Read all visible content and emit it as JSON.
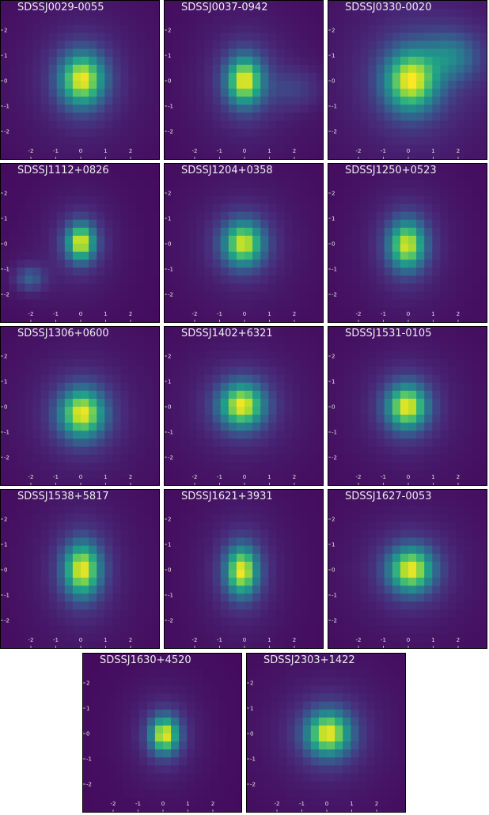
{
  "axis_ticks": {
    "x": [
      "-2",
      "-1",
      "0",
      "1",
      "2"
    ],
    "y": [
      "2",
      "1",
      "0",
      "-1",
      "-2"
    ]
  },
  "colormap": [
    "#440154",
    "#482878",
    "#3e4989",
    "#31688e",
    "#26828e",
    "#1f9e89",
    "#35b779",
    "#6ece58",
    "#b5de2b",
    "#fde725"
  ],
  "panels": [
    {
      "title": "SDSSJ0029-0055"
    },
    {
      "title": "SDSSJ0037-0942"
    },
    {
      "title": "SDSSJ0330-0020"
    },
    {
      "title": "SDSSJ1112+0826"
    },
    {
      "title": "SDSSJ1204+0358"
    },
    {
      "title": "SDSSJ1250+0523"
    },
    {
      "title": "SDSSJ1306+0600"
    },
    {
      "title": "SDSSJ1402+6321"
    },
    {
      "title": "SDSSJ1531-0105"
    },
    {
      "title": "SDSSJ1538+5817"
    },
    {
      "title": "SDSSJ1621+3931"
    },
    {
      "title": "SDSSJ1627-0053"
    },
    {
      "title": "SDSSJ1630+4520"
    },
    {
      "title": "SDSSJ2303+1422"
    }
  ]
}
